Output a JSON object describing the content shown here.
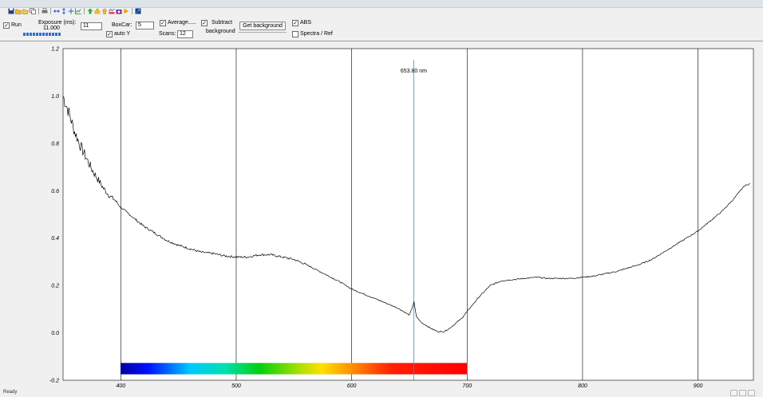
{
  "toolbar": {
    "icons": [
      "save-icon",
      "open-icon",
      "open-folder-icon",
      "copy-icon",
      "print-icon",
      "horizontal-arrows-icon",
      "vertical-arrows-icon",
      "move-icon",
      "chart-icon",
      "upload-icon",
      "folder-up-icon",
      "arrow-up-icon",
      "spectrum-icon",
      "camera-icon",
      "play-icon",
      "zoom-fit-icon"
    ]
  },
  "controls": {
    "run_label": "Run",
    "run_checked": "✓",
    "exposure_label": "Exposure (ms):",
    "exposure_readout": "11.000",
    "exposure_value": "11",
    "boxcar_label": "BoxCar:",
    "boxcar_value": "5",
    "auto_y_label": "auto Y",
    "auto_y_checked": "✓",
    "average_label": "Average",
    "average_checked": "✓",
    "scans_label": "Scans:",
    "scans_value": "12",
    "subtract_label": "Subtract",
    "background_label": "background",
    "subtract_checked": "✓",
    "get_background_label": "Get background",
    "abs_label": "ABS",
    "abs_checked": "✓",
    "spectra_ref_label": "Spectra / Ref",
    "spectra_ref_checked": ""
  },
  "status": {
    "text": "Ready"
  },
  "chart_data": {
    "type": "line",
    "x": [
      350,
      355,
      360,
      365,
      370,
      375,
      380,
      385,
      390,
      395,
      400,
      410,
      420,
      430,
      440,
      450,
      460,
      470,
      480,
      490,
      500,
      510,
      520,
      530,
      540,
      550,
      560,
      570,
      580,
      590,
      600,
      610,
      620,
      630,
      640,
      645,
      650,
      652,
      654,
      656,
      660,
      665,
      670,
      675,
      680,
      685,
      690,
      695,
      700,
      710,
      720,
      730,
      740,
      750,
      760,
      770,
      780,
      790,
      800,
      810,
      820,
      830,
      840,
      850,
      860,
      870,
      880,
      890,
      900,
      910,
      920,
      930,
      940,
      945
    ],
    "y": [
      1.0,
      0.93,
      0.85,
      0.79,
      0.74,
      0.69,
      0.65,
      0.61,
      0.58,
      0.56,
      0.53,
      0.49,
      0.45,
      0.42,
      0.39,
      0.37,
      0.355,
      0.34,
      0.335,
      0.325,
      0.32,
      0.32,
      0.33,
      0.33,
      0.32,
      0.31,
      0.29,
      0.265,
      0.24,
      0.215,
      0.185,
      0.165,
      0.145,
      0.125,
      0.105,
      0.09,
      0.075,
      0.1,
      0.13,
      0.07,
      0.045,
      0.03,
      0.015,
      0.005,
      0.005,
      0.02,
      0.04,
      0.06,
      0.09,
      0.15,
      0.2,
      0.22,
      0.225,
      0.23,
      0.235,
      0.23,
      0.23,
      0.23,
      0.235,
      0.24,
      0.25,
      0.26,
      0.275,
      0.29,
      0.31,
      0.34,
      0.37,
      0.4,
      0.43,
      0.47,
      0.51,
      0.56,
      0.62,
      0.63
    ],
    "title": "",
    "xlabel": "",
    "ylabel": "",
    "xlim": [
      350,
      948
    ],
    "ylim": [
      -0.2,
      1.2
    ],
    "xticks": [
      "400",
      "500",
      "600",
      "700",
      "800",
      "900"
    ],
    "yticks": [
      "-0.2",
      "0.0",
      "0.2",
      "0.4",
      "0.6",
      "0.8",
      "1.0",
      "1.2"
    ],
    "cursor": {
      "x": 653.8,
      "label": "653.80 nm"
    },
    "colorbar_range": [
      400,
      700
    ],
    "grid": "vertical",
    "line_color": "#000000",
    "cursor_color": "#4a90b8"
  }
}
